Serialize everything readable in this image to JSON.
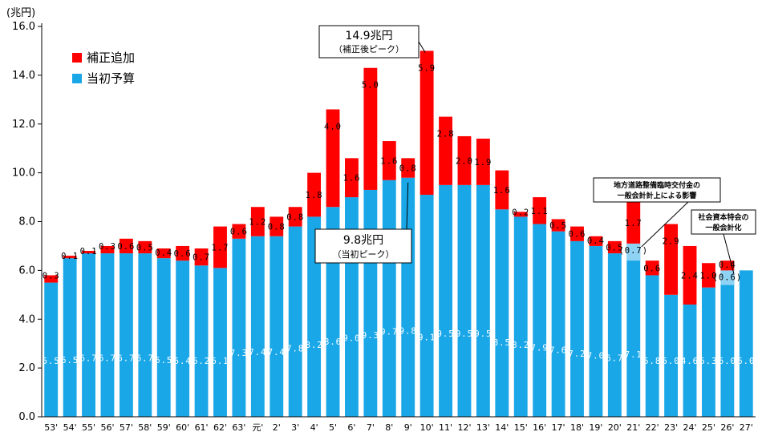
{
  "chart_data": {
    "type": "bar",
    "stacked": true,
    "yunit": "(兆円)",
    "ylim": [
      0,
      16
    ],
    "yticks": [
      "0.0",
      "2.0",
      "4.0",
      "6.0",
      "8.0",
      "10.0",
      "12.0",
      "14.0",
      "16.0"
    ],
    "categories": [
      "53'",
      "54'",
      "55'",
      "56'",
      "57'",
      "58'",
      "59'",
      "60'",
      "61'",
      "62'",
      "63'",
      "元'",
      "2'",
      "3'",
      "4'",
      "5'",
      "6'",
      "7'",
      "8'",
      "9'",
      "10'",
      "11'",
      "12'",
      "13'",
      "14'",
      "15'",
      "16'",
      "17'",
      "18'",
      "19'",
      "20'",
      "21'",
      "22'",
      "23'",
      "24'",
      "25'",
      "26'",
      "27'"
    ],
    "series": [
      {
        "name": "当初予算",
        "color": "#1aa7e8",
        "values": [
          5.5,
          6.5,
          6.7,
          6.7,
          6.7,
          6.7,
          6.5,
          6.4,
          6.2,
          6.1,
          7.3,
          7.4,
          7.4,
          7.8,
          8.2,
          8.6,
          9.0,
          9.3,
          9.7,
          9.8,
          9.1,
          9.5,
          9.5,
          9.5,
          8.5,
          8.2,
          7.9,
          7.6,
          7.2,
          7.0,
          6.7,
          7.1,
          5.8,
          5.0,
          4.6,
          5.3,
          6.0,
          6.0
        ],
        "labels": [
          "5.5",
          "6.5",
          "6.7",
          "6.7",
          "6.7",
          "6.7",
          "6.5",
          "6.4",
          "6.2",
          "6.1",
          "7.3",
          "7.4",
          "7.4",
          "7.8",
          "8.2",
          "8.6",
          "9.0",
          "9.3",
          "9.7",
          "9.8",
          "9.1",
          "9.5",
          "9.5",
          "9.5",
          "8.5",
          "8.2",
          "7.9",
          "7.6",
          "7.2",
          "7.0",
          "6.7",
          "7.1",
          "5.8",
          "5.0",
          "4.6",
          "5.3",
          "6.0",
          "6.0"
        ]
      },
      {
        "name": "補正追加",
        "color": "#ff0000",
        "values": [
          0.3,
          0.1,
          0.1,
          0.3,
          0.6,
          0.5,
          0.4,
          0.6,
          0.7,
          1.7,
          0.6,
          1.2,
          0.8,
          0.8,
          1.8,
          4.0,
          1.6,
          5.0,
          1.6,
          0.8,
          5.9,
          2.8,
          2.0,
          1.9,
          1.6,
          0.2,
          1.1,
          0.5,
          0.6,
          0.4,
          0.5,
          1.7,
          0.6,
          2.9,
          2.4,
          1.0,
          0.4,
          0
        ],
        "labels": [
          "0.3",
          "0.1",
          "0.1",
          "0.3",
          "0.6",
          "0.5",
          "0.4",
          "0.6",
          "0.7",
          "1.7",
          "0.6",
          "1.2",
          "0.8",
          "0.8",
          "1.8",
          "4.0",
          "1.6",
          "5.0",
          "1.6",
          "0.8",
          "5.9",
          "2.8",
          "2.0",
          "1.9",
          "1.6",
          "0.2",
          "1.1",
          "0.5",
          "0.6",
          "0.4",
          "0.5",
          "1.7",
          "0.6",
          "2.9",
          "2.4",
          "1.0",
          "0.4",
          ""
        ]
      }
    ],
    "special_segments": [
      {
        "category_index": 31,
        "value": 0.7,
        "label": "(0.7)",
        "color": "#8fd3f4"
      },
      {
        "category_index": 36,
        "value": 0.6,
        "label": "(0.6)",
        "color": "#8fd3f4"
      }
    ],
    "legend": {
      "placement": "top-left",
      "items": [
        {
          "label": "補正追加",
          "color": "#ff0000"
        },
        {
          "label": "当初予算",
          "color": "#1aa7e8"
        }
      ]
    },
    "callouts": {
      "peak_total": {
        "value": "14.9兆円",
        "sub": "（補正後ピーク）",
        "category_index": 20
      },
      "peak_initial": {
        "value": "9.8兆円",
        "sub": "（当初ピーク）",
        "category_index": 19
      },
      "note_21": {
        "lines": [
          "地方道路整備臨時交付金の",
          "一般会計計上による影響"
        ],
        "category_index": 31
      },
      "note_26": {
        "lines": [
          "社会資本特会の",
          "一般会計化"
        ],
        "category_index": 36
      }
    },
    "grid": false
  }
}
